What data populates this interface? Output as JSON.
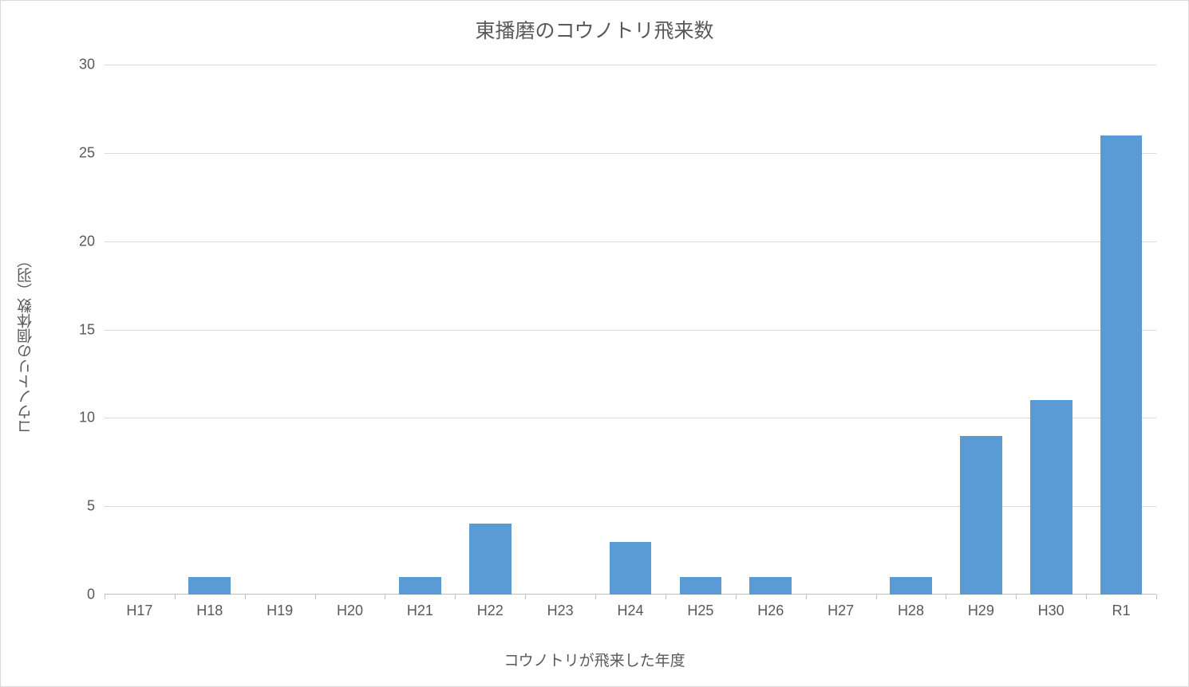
{
  "chart": {
    "type": "bar",
    "title": "東播磨のコウノトリ飛来数",
    "title_fontsize": 25,
    "title_color": "#595959",
    "ylabel": "コウノトリの個体数（羽）",
    "xlabel": "コウノトリが飛来した年度",
    "axis_label_fontsize": 19,
    "axis_label_color": "#595959",
    "tick_fontsize": 18,
    "tick_color": "#595959",
    "ylim": [
      0,
      30
    ],
    "ytick_step": 5,
    "categories": [
      "H17",
      "H18",
      "H19",
      "H20",
      "H21",
      "H22",
      "H23",
      "H24",
      "H25",
      "H26",
      "H27",
      "H28",
      "H29",
      "H30",
      "R1"
    ],
    "values": [
      0,
      1,
      0,
      0,
      1,
      4,
      0,
      3,
      1,
      1,
      0,
      1,
      9,
      11,
      26
    ],
    "bar_color": "#5b9bd5",
    "bar_width": 0.6,
    "background_color": "#ffffff",
    "grid_color": "#d9d9d9",
    "axis_line_color": "#bfbfbf",
    "border_color": "#d9d9d9"
  }
}
